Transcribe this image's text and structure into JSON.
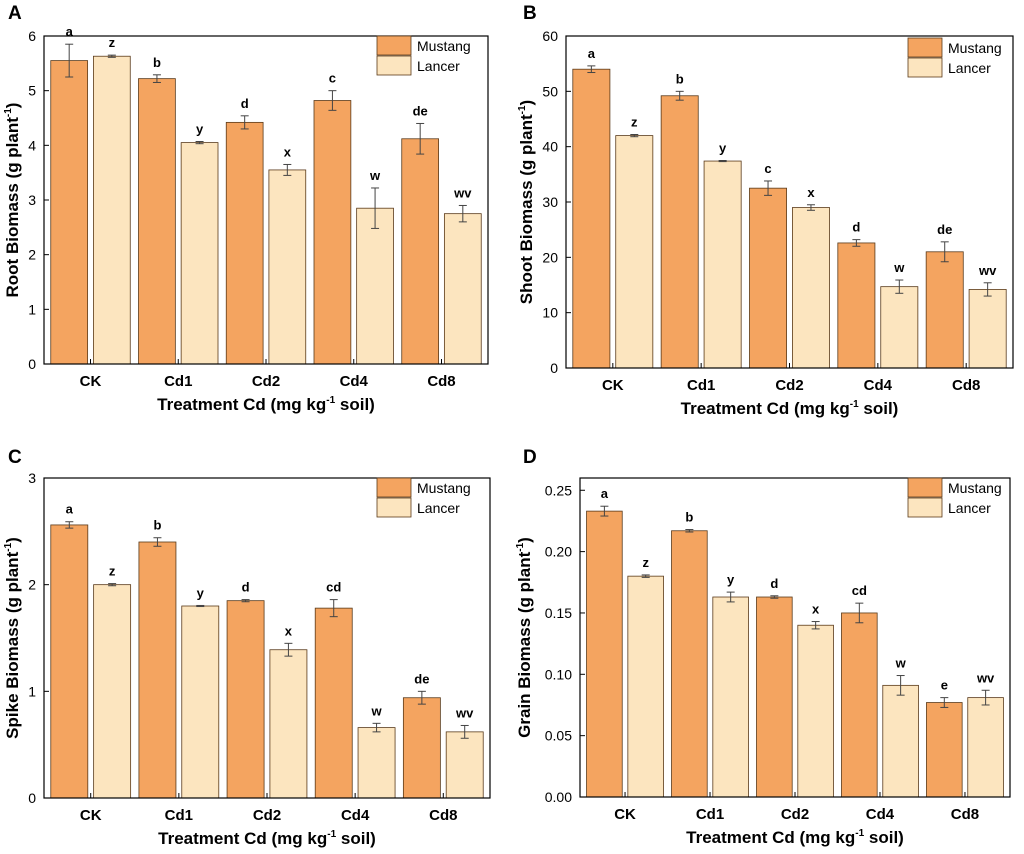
{
  "colors": {
    "mustang": "#F4A460",
    "lancer": "#FCE5BF",
    "outline": "#5a3a1a",
    "axis": "#000000"
  },
  "legend_labels": [
    "Mustang",
    "Lancer"
  ],
  "chart_data": [
    {
      "panel": "A",
      "type": "bar",
      "title": "",
      "categories": [
        "CK",
        "Cd1",
        "Cd2",
        "Cd4",
        "Cd8"
      ],
      "xlabel": {
        "pre": "Treatment Cd (mg kg",
        "sup": "-1",
        "post": " soil)"
      },
      "ylabel": {
        "pre": "Root Biomass (g plant",
        "sup": "-1",
        "post": ")"
      },
      "ylim": [
        0,
        6
      ],
      "yticks": [
        "0",
        "1",
        "2",
        "3",
        "4",
        "5",
        "6"
      ],
      "ytick_values": [
        0,
        1,
        2,
        3,
        4,
        5,
        6
      ],
      "legend_position": "top-right",
      "series": [
        {
          "name": "Mustang",
          "values": [
            5.55,
            5.22,
            4.42,
            4.82,
            4.12
          ],
          "errors": [
            0.3,
            0.07,
            0.12,
            0.18,
            0.28
          ],
          "labels": [
            "a",
            "b",
            "d",
            "c",
            "de"
          ]
        },
        {
          "name": "Lancer",
          "values": [
            5.63,
            4.05,
            3.55,
            2.85,
            2.75
          ],
          "errors": [
            0.02,
            0.02,
            0.1,
            0.37,
            0.15
          ],
          "labels": [
            "z",
            "y",
            "x",
            "w",
            "wv"
          ]
        }
      ]
    },
    {
      "panel": "B",
      "type": "bar",
      "title": "",
      "categories": [
        "CK",
        "Cd1",
        "Cd2",
        "Cd4",
        "Cd8"
      ],
      "xlabel": {
        "pre": "Treatment Cd (mg kg",
        "sup": "-1",
        "post": " soil)"
      },
      "ylabel": {
        "pre": "Shoot Biomass (g plant",
        "sup": "-1",
        "post": ")"
      },
      "ylim": [
        0,
        60
      ],
      "yticks": [
        "0",
        "10",
        "20",
        "30",
        "40",
        "50",
        "60"
      ],
      "ytick_values": [
        0,
        10,
        20,
        30,
        40,
        50,
        60
      ],
      "legend_position": "top-right",
      "series": [
        {
          "name": "Mustang",
          "values": [
            54,
            49.2,
            32.5,
            22.6,
            21
          ],
          "errors": [
            0.6,
            0.8,
            1.3,
            0.6,
            1.8
          ],
          "labels": [
            "a",
            "b",
            "c",
            "d",
            "de"
          ]
        },
        {
          "name": "Lancer",
          "values": [
            42,
            37.4,
            29,
            14.7,
            14.2
          ],
          "errors": [
            0.2,
            0.1,
            0.5,
            1.2,
            1.2
          ],
          "labels": [
            "z",
            "y",
            "x",
            "w",
            "wv"
          ]
        }
      ]
    },
    {
      "panel": "C",
      "type": "bar",
      "title": "",
      "categories": [
        "CK",
        "Cd1",
        "Cd2",
        "Cd4",
        "Cd8"
      ],
      "xlabel": {
        "pre": "Treatment Cd (mg kg",
        "sup": "-1",
        "post": " soil)"
      },
      "ylabel": {
        "pre": "Spike Biomass (g plant",
        "sup": "-1",
        "post": ")"
      },
      "ylim": [
        0,
        3
      ],
      "yticks": [
        "0",
        "1",
        "2",
        "3"
      ],
      "ytick_values": [
        0,
        1,
        2,
        3
      ],
      "legend_position": "top-right",
      "series": [
        {
          "name": "Mustang",
          "values": [
            2.56,
            2.4,
            1.85,
            1.78,
            0.94
          ],
          "errors": [
            0.03,
            0.04,
            0.01,
            0.08,
            0.06
          ],
          "labels": [
            "a",
            "b",
            "d",
            "cd",
            "de"
          ]
        },
        {
          "name": "Lancer",
          "values": [
            2,
            1.8,
            1.39,
            0.66,
            0.62
          ],
          "errors": [
            0.01,
            0.005,
            0.06,
            0.04,
            0.06
          ],
          "labels": [
            "z",
            "y",
            "x",
            "w",
            "wv"
          ]
        }
      ]
    },
    {
      "panel": "D",
      "type": "bar",
      "title": "",
      "categories": [
        "CK",
        "Cd1",
        "Cd2",
        "Cd4",
        "Cd8"
      ],
      "xlabel": {
        "pre": "Treatment Cd (mg kg",
        "sup": "-1",
        "post": " soil)"
      },
      "ylabel": {
        "pre": "Grain Biomass (g plant",
        "sup": "-1",
        "post": ")"
      },
      "ylim": [
        0,
        0.26
      ],
      "yticks": [
        "0.00",
        "0.05",
        "0.10",
        "0.15",
        "0.20",
        "0.25"
      ],
      "ytick_values": [
        0,
        0.05,
        0.1,
        0.15,
        0.2,
        0.25
      ],
      "legend_position": "top-right",
      "series": [
        {
          "name": "Mustang",
          "values": [
            0.233,
            0.217,
            0.163,
            0.15,
            0.077
          ],
          "errors": [
            0.004,
            0.001,
            0.001,
            0.008,
            0.004
          ],
          "labels": [
            "a",
            "b",
            "d",
            "cd",
            "e"
          ]
        },
        {
          "name": "Lancer",
          "values": [
            0.18,
            0.163,
            0.14,
            0.091,
            0.081
          ],
          "errors": [
            0.001,
            0.004,
            0.003,
            0.008,
            0.006
          ],
          "labels": [
            "z",
            "y",
            "x",
            "w",
            "wv"
          ]
        }
      ]
    }
  ]
}
